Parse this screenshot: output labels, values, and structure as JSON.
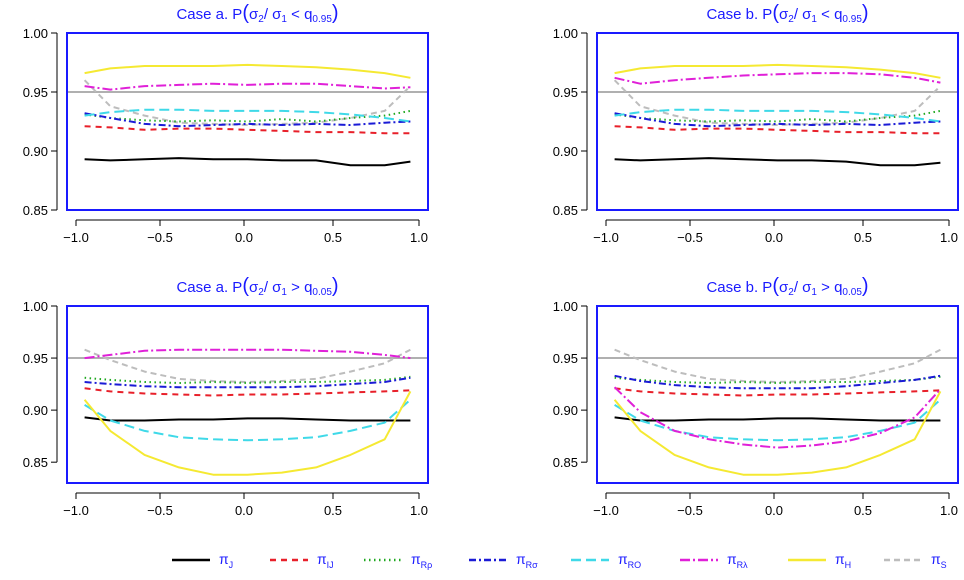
{
  "legend_order": [
    "J",
    "IJ",
    "Rrho",
    "Rsigma",
    "RO",
    "Rlambda",
    "H",
    "S"
  ],
  "series_styles": {
    "J": {
      "color": "#000000",
      "dash": "",
      "width": 2.0,
      "label": {
        "main": "π",
        "sub": "J"
      }
    },
    "IJ": {
      "color": "#e8202a",
      "dash": "6,5",
      "width": 2.0,
      "label": {
        "main": "π",
        "sub": "IJ"
      }
    },
    "Rrho": {
      "color": "#1fa81f",
      "dash": "1.5,3.5",
      "width": 2.0,
      "label": {
        "main": "π",
        "sub": "Rρ"
      }
    },
    "Rsigma": {
      "color": "#1b1bd6",
      "dash": "7,3,2,3",
      "width": 2.0,
      "label": {
        "main": "π",
        "sub": "Rσ"
      }
    },
    "RO": {
      "color": "#3fd9e8",
      "dash": "10,5",
      "width": 2.0,
      "label": {
        "main": "π",
        "sub": "RO"
      }
    },
    "Rlambda": {
      "color": "#e020d8",
      "dash": "10,3,2,3",
      "width": 2.0,
      "label": {
        "main": "π",
        "sub": "Rλ"
      }
    },
    "H": {
      "color": "#f5e932",
      "dash": "",
      "width": 2.0,
      "label": {
        "main": "π",
        "sub": "H"
      }
    },
    "S": {
      "color": "#bdbdbd",
      "dash": "6,4",
      "width": 2.0,
      "label": {
        "main": "π",
        "sub": "S"
      }
    }
  },
  "reference_line": {
    "value": 0.95,
    "color": "#b0b0b0"
  },
  "chart_data": [
    {
      "type": "line",
      "title": {
        "prefix": "Case a. P",
        "open": "(",
        "sigma": "σ",
        "s2": "2",
        "slash": "/ ",
        "s1": "1",
        "op": " < q",
        "q": "0.95",
        "close": ")"
      },
      "xlim": [
        -1,
        1
      ],
      "ylim": [
        0.85,
        1.0
      ],
      "xticks": [
        "−1.0",
        "−0.5",
        "0.0",
        "0.5",
        "1.0"
      ],
      "yticks": [
        "0.85",
        "0.90",
        "0.95",
        "1.00"
      ],
      "x": [
        -0.95,
        -0.8,
        -0.6,
        -0.4,
        -0.2,
        0.0,
        0.2,
        0.4,
        0.6,
        0.8,
        0.95
      ],
      "series": {
        "J": [
          0.893,
          0.892,
          0.893,
          0.894,
          0.893,
          0.893,
          0.892,
          0.892,
          0.888,
          0.888,
          0.891
        ],
        "IJ": [
          0.921,
          0.92,
          0.918,
          0.919,
          0.919,
          0.918,
          0.917,
          0.916,
          0.916,
          0.915,
          0.915
        ],
        "Rrho": [
          0.931,
          0.928,
          0.926,
          0.925,
          0.926,
          0.925,
          0.927,
          0.925,
          0.928,
          0.93,
          0.934
        ],
        "Rsigma": [
          0.932,
          0.928,
          0.923,
          0.921,
          0.922,
          0.923,
          0.922,
          0.923,
          0.922,
          0.924,
          0.925
        ],
        "RO": [
          0.93,
          0.933,
          0.935,
          0.935,
          0.934,
          0.934,
          0.934,
          0.933,
          0.931,
          0.928,
          0.925
        ],
        "Rlambda": [
          0.955,
          0.952,
          0.955,
          0.956,
          0.957,
          0.956,
          0.957,
          0.957,
          0.955,
          0.953,
          0.954
        ],
        "H": [
          0.966,
          0.97,
          0.972,
          0.972,
          0.972,
          0.973,
          0.972,
          0.971,
          0.969,
          0.966,
          0.962
        ],
        "S": [
          0.96,
          0.938,
          0.93,
          0.924,
          0.923,
          0.922,
          0.923,
          0.924,
          0.928,
          0.934,
          0.955
        ]
      }
    },
    {
      "type": "line",
      "title": {
        "prefix": "Case b. P",
        "open": "(",
        "sigma": "σ",
        "s2": "2",
        "slash": "/ ",
        "s1": "1",
        "op": " < q",
        "q": "0.95",
        "close": ")"
      },
      "xlim": [
        -1,
        1
      ],
      "ylim": [
        0.85,
        1.0
      ],
      "xticks": [
        "−1.0",
        "−0.5",
        "0.0",
        "0.5",
        "1.0"
      ],
      "yticks": [
        "0.85",
        "0.90",
        "0.95",
        "1.00"
      ],
      "x": [
        -0.95,
        -0.8,
        -0.6,
        -0.4,
        -0.2,
        0.0,
        0.2,
        0.4,
        0.6,
        0.8,
        0.95
      ],
      "series": {
        "J": [
          0.893,
          0.892,
          0.893,
          0.894,
          0.893,
          0.892,
          0.892,
          0.891,
          0.888,
          0.888,
          0.89
        ],
        "IJ": [
          0.921,
          0.92,
          0.918,
          0.919,
          0.919,
          0.918,
          0.917,
          0.916,
          0.916,
          0.915,
          0.915
        ],
        "Rrho": [
          0.931,
          0.928,
          0.926,
          0.925,
          0.926,
          0.925,
          0.927,
          0.925,
          0.928,
          0.93,
          0.934
        ],
        "Rsigma": [
          0.932,
          0.928,
          0.923,
          0.921,
          0.922,
          0.923,
          0.922,
          0.923,
          0.922,
          0.924,
          0.925
        ],
        "RO": [
          0.93,
          0.933,
          0.935,
          0.935,
          0.934,
          0.934,
          0.934,
          0.933,
          0.931,
          0.928,
          0.925
        ],
        "Rlambda": [
          0.962,
          0.957,
          0.96,
          0.962,
          0.964,
          0.965,
          0.966,
          0.966,
          0.965,
          0.962,
          0.958
        ],
        "H": [
          0.966,
          0.97,
          0.972,
          0.972,
          0.972,
          0.973,
          0.972,
          0.971,
          0.969,
          0.966,
          0.962
        ],
        "S": [
          0.96,
          0.938,
          0.93,
          0.924,
          0.923,
          0.922,
          0.923,
          0.924,
          0.928,
          0.934,
          0.955
        ]
      }
    },
    {
      "type": "line",
      "title": {
        "prefix": "Case a. P",
        "open": "(",
        "sigma": "σ",
        "s2": "2",
        "slash": "/ ",
        "s1": "1",
        "op": " > q",
        "q": "0.05",
        "close": ")"
      },
      "xlim": [
        -1,
        1
      ],
      "ylim": [
        0.83,
        1.0
      ],
      "xticks": [
        "−1.0",
        "−0.5",
        "0.0",
        "0.5",
        "1.0"
      ],
      "yticks": [
        "0.85",
        "0.90",
        "0.95",
        "1.00"
      ],
      "x": [
        -0.95,
        -0.8,
        -0.6,
        -0.4,
        -0.2,
        0.0,
        0.2,
        0.4,
        0.6,
        0.8,
        0.95
      ],
      "series": {
        "J": [
          0.893,
          0.89,
          0.89,
          0.891,
          0.891,
          0.892,
          0.892,
          0.891,
          0.89,
          0.89,
          0.89
        ],
        "IJ": [
          0.921,
          0.918,
          0.916,
          0.915,
          0.914,
          0.915,
          0.915,
          0.916,
          0.917,
          0.918,
          0.919
        ],
        "Rrho": [
          0.931,
          0.929,
          0.927,
          0.926,
          0.927,
          0.926,
          0.927,
          0.927,
          0.928,
          0.929,
          0.932
        ],
        "Rsigma": [
          0.927,
          0.925,
          0.923,
          0.922,
          0.922,
          0.922,
          0.922,
          0.923,
          0.925,
          0.927,
          0.931
        ],
        "RO": [
          0.905,
          0.89,
          0.88,
          0.874,
          0.872,
          0.871,
          0.872,
          0.874,
          0.88,
          0.888,
          0.91
        ],
        "Rlambda": [
          0.95,
          0.953,
          0.957,
          0.958,
          0.958,
          0.958,
          0.958,
          0.957,
          0.956,
          0.953,
          0.95
        ],
        "H": [
          0.91,
          0.88,
          0.857,
          0.845,
          0.838,
          0.838,
          0.84,
          0.845,
          0.857,
          0.872,
          0.918
        ],
        "S": [
          0.958,
          0.948,
          0.937,
          0.93,
          0.928,
          0.927,
          0.928,
          0.93,
          0.937,
          0.945,
          0.958
        ]
      }
    },
    {
      "type": "line",
      "title": {
        "prefix": "Case b. P",
        "open": "(",
        "sigma": "σ",
        "s2": "2",
        "slash": "/ ",
        "s1": "1",
        "op": " > q",
        "q": "0.05",
        "close": ")"
      },
      "xlim": [
        -1,
        1
      ],
      "ylim": [
        0.83,
        1.0
      ],
      "xticks": [
        "−1.0",
        "−0.5",
        "0.0",
        "0.5",
        "1.0"
      ],
      "yticks": [
        "0.85",
        "0.90",
        "0.95",
        "1.00"
      ],
      "x": [
        -0.95,
        -0.8,
        -0.6,
        -0.4,
        -0.2,
        0.0,
        0.2,
        0.4,
        0.6,
        0.8,
        0.95
      ],
      "series": {
        "J": [
          0.893,
          0.89,
          0.89,
          0.891,
          0.891,
          0.892,
          0.892,
          0.891,
          0.89,
          0.89,
          0.89
        ],
        "IJ": [
          0.921,
          0.918,
          0.916,
          0.915,
          0.914,
          0.915,
          0.915,
          0.916,
          0.917,
          0.918,
          0.919
        ],
        "Rrho": [
          0.931,
          0.929,
          0.927,
          0.926,
          0.927,
          0.926,
          0.927,
          0.927,
          0.928,
          0.929,
          0.932
        ],
        "Rsigma": [
          0.933,
          0.928,
          0.924,
          0.922,
          0.921,
          0.921,
          0.921,
          0.923,
          0.926,
          0.929,
          0.933
        ],
        "RO": [
          0.905,
          0.89,
          0.88,
          0.874,
          0.872,
          0.871,
          0.872,
          0.874,
          0.88,
          0.888,
          0.91
        ],
        "Rlambda": [
          0.922,
          0.898,
          0.88,
          0.872,
          0.867,
          0.864,
          0.866,
          0.87,
          0.878,
          0.893,
          0.92
        ],
        "H": [
          0.91,
          0.88,
          0.857,
          0.845,
          0.838,
          0.838,
          0.84,
          0.845,
          0.857,
          0.872,
          0.918
        ],
        "S": [
          0.958,
          0.948,
          0.937,
          0.93,
          0.928,
          0.927,
          0.928,
          0.93,
          0.937,
          0.945,
          0.958
        ]
      }
    }
  ]
}
